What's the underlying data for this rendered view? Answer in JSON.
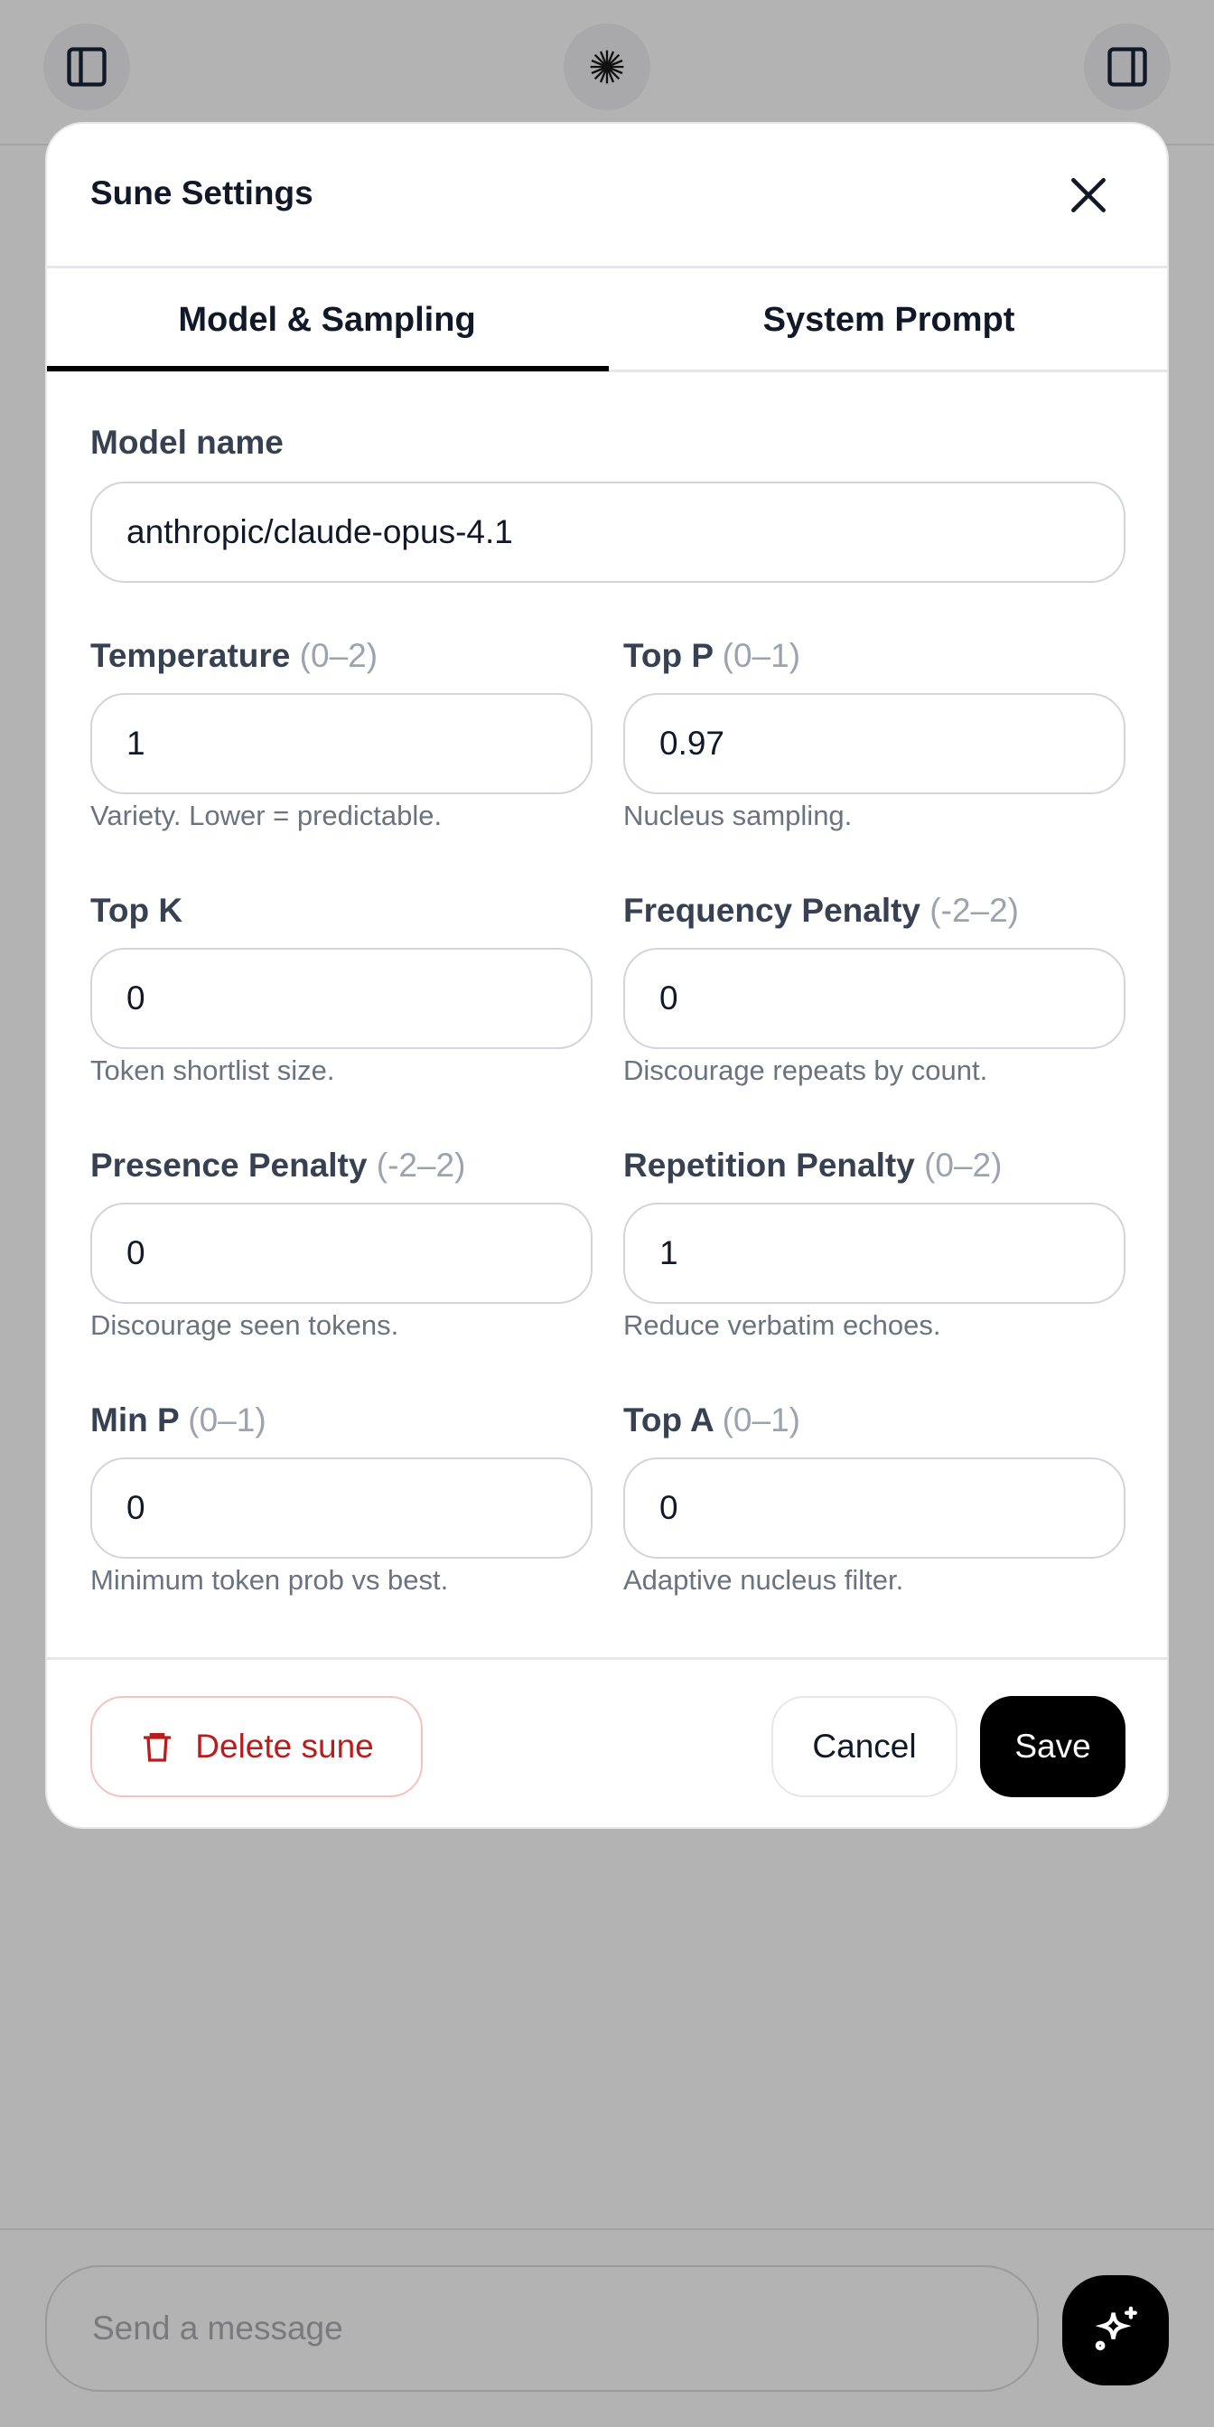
{
  "header": {
    "left_icon": "sidebar-left-icon",
    "center_icon": "sunburst-logo-icon",
    "right_icon": "sidebar-right-icon"
  },
  "dialog": {
    "title": "Sune Settings",
    "close_icon": "close-icon",
    "tabs": [
      {
        "label": "Model & Sampling",
        "active": true
      },
      {
        "label": "System Prompt",
        "active": false
      }
    ],
    "model_name": {
      "label": "Model name",
      "value": "anthropic/claude-opus-4.1"
    },
    "fields": [
      {
        "label": "Temperature",
        "range": "(0–2)",
        "value": "1",
        "help": "Variety. Lower = predictable."
      },
      {
        "label": "Top P",
        "range": "(0–1)",
        "value": "0.97",
        "help": "Nucleus sampling."
      },
      {
        "label": "Top K",
        "range": "",
        "value": "0",
        "help": "Token shortlist size."
      },
      {
        "label": "Frequency Penalty",
        "range": "(-2–2)",
        "value": "0",
        "help": "Discourage repeats by count."
      },
      {
        "label": "Presence Penalty",
        "range": "(-2–2)",
        "value": "0",
        "help": "Discourage seen tokens."
      },
      {
        "label": "Repetition Penalty",
        "range": "(0–2)",
        "value": "1",
        "help": "Reduce verbatim echoes."
      },
      {
        "label": "Min P",
        "range": "(0–1)",
        "value": "0",
        "help": "Minimum token prob vs best."
      },
      {
        "label": "Top A",
        "range": "(0–1)",
        "value": "0",
        "help": "Adaptive nucleus filter."
      }
    ],
    "footer": {
      "delete_label": "Delete sune",
      "cancel_label": "Cancel",
      "save_label": "Save"
    },
    "colors": {
      "danger": "#b91c1c",
      "primary": "#000000"
    }
  },
  "composer": {
    "placeholder": "Send a message",
    "send_icon": "sparkles-icon"
  }
}
